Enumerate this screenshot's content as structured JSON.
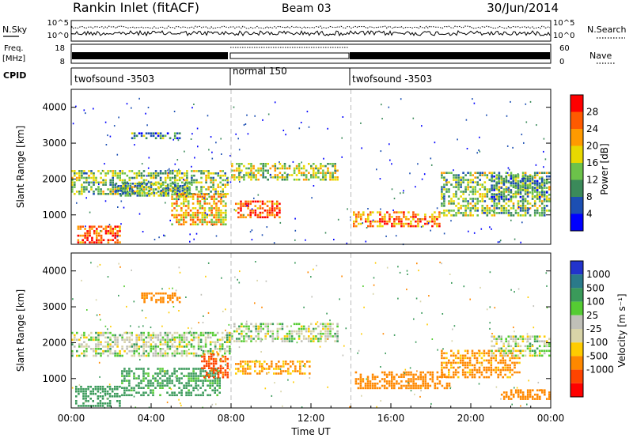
{
  "header": {
    "title": "Rankin Inlet (fitACF)",
    "beam": "Beam 03",
    "date": "30/Jun/2014"
  },
  "top_panels": {
    "nsky_label": "N.Sky",
    "nsearch_label": "N.Search",
    "nsky_ticks": [
      "10^5",
      "10^0"
    ],
    "nsearch_ticks": [
      "10^5",
      "10^0"
    ],
    "freq_label_1": "Freq.",
    "freq_label_2": "[MHz]",
    "freq_ticks": [
      "18",
      "8"
    ],
    "nave_label": "Nave",
    "nave_ticks": [
      "60",
      "0"
    ],
    "cpid_label": "CPID",
    "cpid_segments": [
      {
        "label": "twofsound -3503",
        "start_h": 0,
        "end_h": 8
      },
      {
        "label": "normal 150",
        "start_h": 8,
        "end_h": 14
      },
      {
        "label": "twofsound -3503",
        "start_h": 14,
        "end_h": 24
      }
    ]
  },
  "colors": {
    "power_scale": [
      "#0000ff",
      "#1c4fb3",
      "#3b8a5a",
      "#6cc24a",
      "#e8d800",
      "#ff9a00",
      "#ff5a00",
      "#ff0000"
    ],
    "velocity_scale": [
      "#2233cc",
      "#2a7a8a",
      "#3a9a5a",
      "#55cc33",
      "#c0c0b8",
      "#d8d4a8",
      "#ffcc00",
      "#ff8800",
      "#ff4400",
      "#ff0000"
    ],
    "ground_scatter": "#c0c0b8"
  },
  "chart_data": [
    {
      "type": "heatmap",
      "name": "power",
      "ylabel": "Slant Range [km]",
      "ylim": [
        180,
        4500
      ],
      "xlim_hours": [
        0,
        24
      ],
      "yticks": [
        1000,
        2000,
        3000,
        4000
      ],
      "colorbar_label": "Power [dB]",
      "colorbar_ticks": [
        4,
        8,
        12,
        16,
        20,
        24,
        28
      ],
      "colorbar_range": [
        0,
        32
      ],
      "regions": [
        {
          "t0": 0.0,
          "t1": 7.9,
          "r0": 1550,
          "r1": 2250,
          "value": 14
        },
        {
          "t0": 0.3,
          "t1": 2.5,
          "r0": 200,
          "r1": 700,
          "value": 26
        },
        {
          "t0": 2.2,
          "t1": 6.0,
          "r0": 1500,
          "r1": 1900,
          "value": 12
        },
        {
          "t0": 5.0,
          "t1": 7.8,
          "r0": 700,
          "r1": 1600,
          "value": 20
        },
        {
          "t0": 8.0,
          "t1": 13.4,
          "r0": 1950,
          "r1": 2450,
          "value": 16
        },
        {
          "t0": 8.2,
          "t1": 10.5,
          "r0": 900,
          "r1": 1400,
          "value": 26
        },
        {
          "t0": 3.0,
          "t1": 5.5,
          "r0": 3100,
          "r1": 3300,
          "value": 10
        },
        {
          "t0": 14.1,
          "t1": 18.5,
          "r0": 650,
          "r1": 1100,
          "value": 24
        },
        {
          "t0": 18.5,
          "t1": 24.0,
          "r0": 950,
          "r1": 2200,
          "value": 14
        },
        {
          "t0": 21.0,
          "t1": 24.0,
          "r0": 1400,
          "r1": 2100,
          "value": 10
        }
      ]
    },
    {
      "type": "heatmap",
      "name": "velocity",
      "xlabel": "Time UT",
      "ylabel": "Slant Range [km]",
      "ylim": [
        180,
        4500
      ],
      "xlim_hours": [
        0,
        24
      ],
      "yticks": [
        1000,
        2000,
        3000,
        4000
      ],
      "xticks": [
        "00:00",
        "04:00",
        "08:00",
        "12:00",
        "16:00",
        "20:00",
        "00:00"
      ],
      "colorbar_label": "Velocity [m s⁻¹]",
      "colorbar_ticks": [
        "1000",
        "500",
        "100",
        "25",
        "-25",
        "-100",
        "-500",
        "-1000"
      ],
      "regions": [
        {
          "t0": 0.0,
          "t1": 8.0,
          "r0": 1600,
          "r1": 2300,
          "value": 0
        },
        {
          "t0": 0.2,
          "t1": 2.5,
          "r0": 200,
          "r1": 800,
          "value": 150
        },
        {
          "t0": 2.5,
          "t1": 7.5,
          "r0": 500,
          "r1": 1300,
          "value": 120
        },
        {
          "t0": 6.5,
          "t1": 7.9,
          "r0": 1000,
          "r1": 1700,
          "value": -450
        },
        {
          "t0": 8.0,
          "t1": 13.4,
          "r0": 2000,
          "r1": 2550,
          "value": 0
        },
        {
          "t0": 8.2,
          "t1": 12.0,
          "r0": 1100,
          "r1": 1500,
          "value": -150
        },
        {
          "t0": 3.5,
          "t1": 5.5,
          "r0": 3100,
          "r1": 3400,
          "value": -300
        },
        {
          "t0": 14.2,
          "t1": 19.0,
          "r0": 700,
          "r1": 1200,
          "value": -250
        },
        {
          "t0": 18.5,
          "t1": 22.5,
          "r0": 1000,
          "r1": 1800,
          "value": -200
        },
        {
          "t0": 21.0,
          "t1": 24.0,
          "r0": 1600,
          "r1": 2200,
          "value": 0
        },
        {
          "t0": 21.5,
          "t1": 24.0,
          "r0": 400,
          "r1": 700,
          "value": -300
        }
      ]
    }
  ]
}
